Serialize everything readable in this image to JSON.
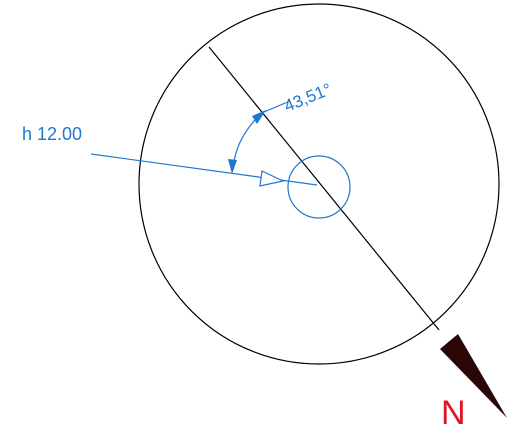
{
  "labels": {
    "sun_label": "h 12.00",
    "angle_label": "43,51°",
    "north_label": "N"
  },
  "colors": {
    "outline": "#000000",
    "annotation": "#1e78d2",
    "north_text": "#e0141e",
    "north_arrow": "#2a0606",
    "background": "#ffffff"
  }
}
